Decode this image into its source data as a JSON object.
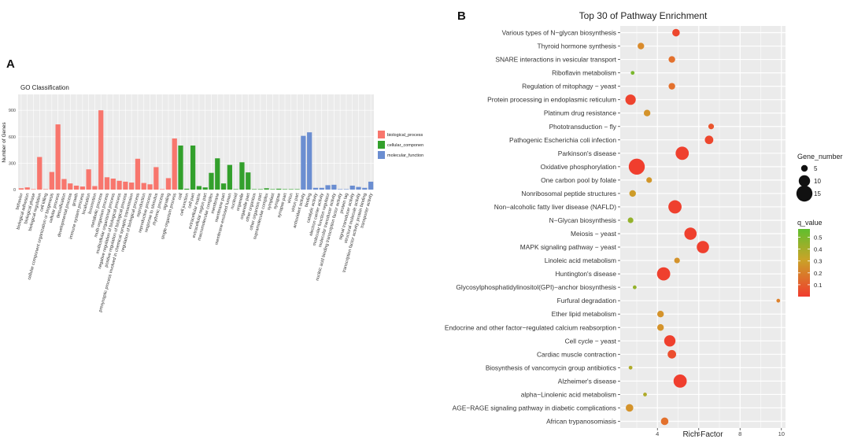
{
  "panel_a": {
    "letter": "A",
    "title": "GO Classification",
    "ylabel": "Number of Genes",
    "yticks": [
      0,
      300,
      600,
      900
    ],
    "legend": [
      {
        "label": "biological_process",
        "color": "#f8766d"
      },
      {
        "label": "cellular_componen",
        "color": "#33a02c"
      },
      {
        "label": "molecular_function",
        "color": "#6b8ed1"
      }
    ]
  },
  "panel_b": {
    "letter": "B",
    "title": "Top 30 of Pathway Enrichment",
    "xlabel": "Rich Factor",
    "xticks": [
      4,
      6,
      8,
      10
    ],
    "size_legend_title": "Gene_number",
    "size_legend": [
      5,
      10,
      15
    ],
    "color_legend_title": "q_value",
    "color_legend_ticks": [
      "0.5",
      "0.4",
      "0.3",
      "0.2",
      "0.1"
    ]
  },
  "chart_data": [
    {
      "type": "bar",
      "title": "GO Classification",
      "xlabel": "",
      "ylabel": "Number of Genes",
      "ylim": [
        0,
        1080
      ],
      "series": [
        {
          "name": "biological_process",
          "color": "#f8766d",
          "categories": [
            "behavior",
            "biological adhesion",
            "biological phase",
            "biological regulation",
            "cell killing",
            "cellular component organization or biogenesis",
            "cellular process",
            "detoxification",
            "developmental process",
            "growth",
            "immune system process",
            "localization",
            "locomotion",
            "metabolic process",
            "multi-organism process",
            "multicellular organismal process",
            "negative regulation of biological process",
            "positive regulation of biological process",
            "presynaptic process involved in chemical synaptic transmission",
            "regulation of biological process",
            "reproduction",
            "reproductive process",
            "response to stimulus",
            "rhythmic process",
            "signaling",
            "single-organism process"
          ],
          "values": [
            15,
            25,
            5,
            370,
            5,
            200,
            740,
            120,
            70,
            45,
            35,
            230,
            40,
            900,
            140,
            125,
            100,
            90,
            80,
            350,
            75,
            60,
            255,
            5,
            130,
            580
          ]
        },
        {
          "name": "cellular_componen",
          "color": "#33a02c",
          "categories": [
            "cell",
            "cell junction",
            "cell part",
            "extracellular matrix",
            "extracellular region part",
            "macromolecular complex",
            "membrane",
            "membrane part",
            "membrane-enclosed lumen",
            "nucleoid",
            "organelle",
            "organelle part",
            "other organism",
            "other organism part",
            "supramolecular complex",
            "symplast",
            "synapse",
            "synapse part",
            "virion",
            "virion part"
          ],
          "values": [
            500,
            10,
            500,
            40,
            25,
            190,
            355,
            70,
            280,
            5,
            310,
            195,
            5,
            5,
            15,
            5,
            10,
            5,
            5,
            5
          ]
        },
        {
          "name": "molecular_function",
          "color": "#6b8ed1",
          "categories": [
            "antioxidant activity",
            "binding",
            "catalytic activity",
            "electron carrier activity",
            "molecular function regulator",
            "molecular transducer activity",
            "nucleic acid binding transcription factor activity",
            "protein tag",
            "signal transducer activity",
            "structural molecule activity",
            "transcription factor activity, protein binding",
            "transporter activity"
          ],
          "values": [
            610,
            650,
            20,
            20,
            50,
            55,
            5,
            5,
            45,
            30,
            20,
            90
          ]
        }
      ]
    },
    {
      "type": "scatter",
      "title": "Top 30 of Pathway Enrichment",
      "xlabel": "Rich Factor",
      "xlim": [
        2.2,
        10.2
      ],
      "size_legend_title": "Gene_number",
      "color_legend_title": "q_value",
      "categories": [
        "Various types of N−glycan biosynthesis",
        "Thyroid hormone synthesis",
        "SNARE interactions in vesicular transport",
        "Riboflavin metabolism",
        "Regulation of mitophagy − yeast",
        "Protein processing in endoplasmic reticulum",
        "Platinum drug resistance",
        "Phototransduction − fly",
        "Pathogenic Escherichia coli infection",
        "Parkinson's disease",
        "Oxidative phosphorylation",
        "One carbon pool by folate",
        "Nonribosomal peptide structures",
        "Non−alcoholic fatty liver disease (NAFLD)",
        "N−Glycan biosynthesis",
        "Meiosis − yeast",
        "MAPK signaling pathway − yeast",
        "Linoleic acid metabolism",
        "Huntington's disease",
        "Glycosylphosphatidylinositol(GPI)−anchor biosynthesis",
        "Furfural degradation",
        "Ether lipid metabolism",
        "Endocrine and other factor−regulated calcium reabsorption",
        "Cell cycle − yeast",
        "Cardiac muscle contraction",
        "Biosynthesis of vancomycin group antibiotics",
        "Alzheimer's disease",
        "alpha−Linolenic acid metabolism",
        "AGE−RAGE signaling pathway in diabetic complications",
        "African trypanosomiasis"
      ],
      "x": [
        4.9,
        3.2,
        4.7,
        2.8,
        4.7,
        2.7,
        3.5,
        6.6,
        6.5,
        5.2,
        3.0,
        3.6,
        2.8,
        4.85,
        2.7,
        5.6,
        6.2,
        4.95,
        4.3,
        2.9,
        9.85,
        4.15,
        4.15,
        4.6,
        4.7,
        2.7,
        5.1,
        3.4,
        2.65,
        4.35
      ],
      "gene_number": [
        6,
        5,
        5,
        2,
        5,
        9,
        5,
        4,
        7,
        12,
        15,
        4,
        5,
        12,
        4,
        11,
        11,
        4,
        12,
        2,
        2,
        5,
        5,
        10,
        7,
        2,
        12,
        2,
        6,
        6
      ],
      "q_value": [
        0.03,
        0.25,
        0.15,
        0.55,
        0.15,
        0.02,
        0.3,
        0.07,
        0.03,
        0.01,
        0.005,
        0.32,
        0.35,
        0.01,
        0.5,
        0.01,
        0.01,
        0.3,
        0.01,
        0.5,
        0.2,
        0.3,
        0.3,
        0.01,
        0.05,
        0.45,
        0.005,
        0.45,
        0.3,
        0.15
      ]
    }
  ]
}
